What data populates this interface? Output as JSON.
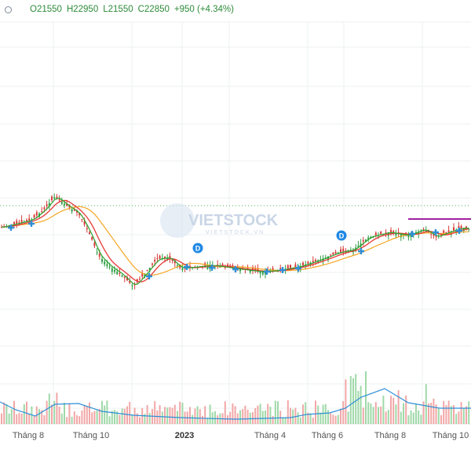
{
  "header": {
    "open": "O21550",
    "high": "H22950",
    "low": "L21550",
    "close": "C22850",
    "change": "+950 (+4.34%)",
    "color": "#2e8b3a"
  },
  "watermark": {
    "text": "VIETSTOCK",
    "sub": "VIETSTOCK.VN"
  },
  "chart_data": {
    "type": "candlestick",
    "x_ticks": [
      "Tháng 8",
      "Tháng 10",
      "2023",
      "Tháng 4",
      "Tháng 6",
      "Tháng 8",
      "Tháng 10"
    ],
    "dividend_markers": [
      "D",
      "D"
    ],
    "colors": {
      "up": "#2e9e44",
      "down": "#d93a3a",
      "ma_short": "#2ca02c",
      "ma_mid": "#e53935",
      "ma_long": "#f5a623",
      "volume_avg": "#2f8fd8",
      "resistance": "#a020a0",
      "dotted_ref": "#4caf50"
    },
    "last_close": 22850
  }
}
